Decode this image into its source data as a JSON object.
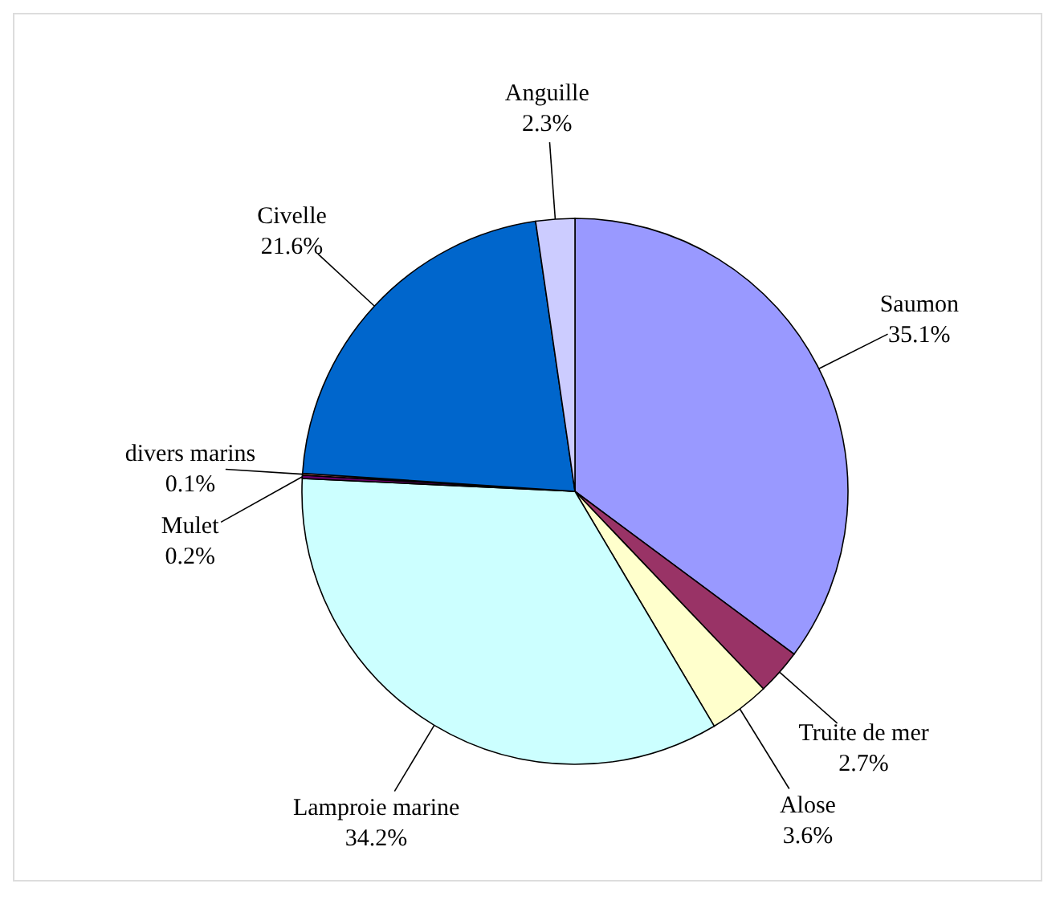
{
  "chart_data": {
    "type": "pie",
    "categories": [
      "Saumon",
      "Truite de mer",
      "Alose",
      "Lamproie marine",
      "Mulet",
      "divers marins",
      "Civelle",
      "Anguille"
    ],
    "values": [
      35.1,
      2.7,
      3.6,
      34.2,
      0.2,
      0.1,
      21.6,
      2.3
    ],
    "value_labels": [
      "35.1%",
      "2.7%",
      "3.6%",
      "34.2%",
      "0.2%",
      "0.1%",
      "21.6%",
      "2.3%"
    ],
    "colors": [
      "#9999ff",
      "#993366",
      "#ffffcc",
      "#ccffff",
      "#660066",
      "#ff8080",
      "#0066cc",
      "#ccccff"
    ]
  }
}
